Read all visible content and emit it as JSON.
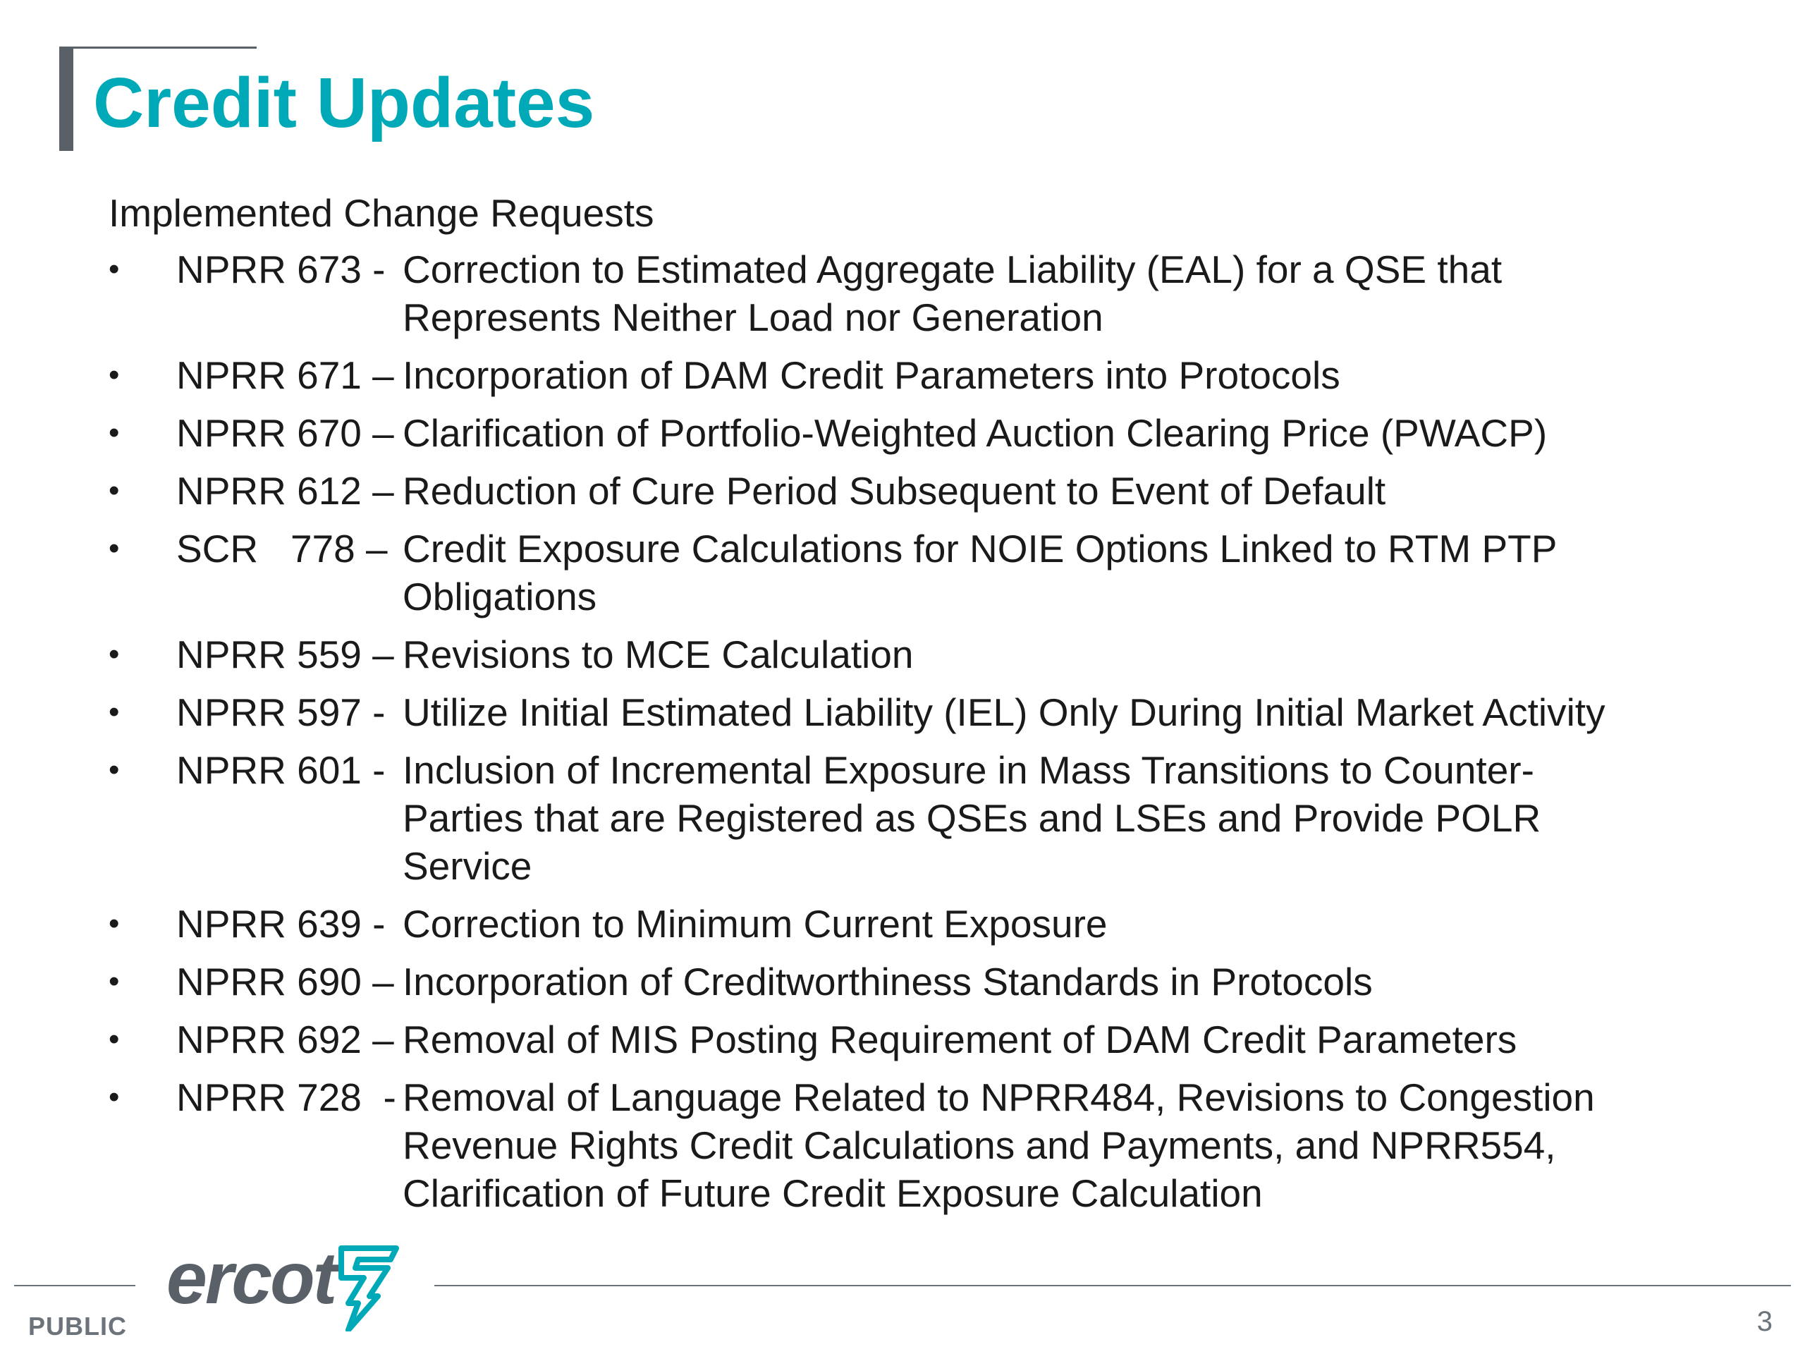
{
  "slide": {
    "title": "Credit Updates",
    "section_heading": "Implemented Change Requests",
    "bullet_glyph": "•",
    "items": [
      {
        "code": "NPRR 673 -",
        "lines": [
          "Correction to Estimated Aggregate Liability (EAL) for a QSE that",
          "Represents Neither Load nor Generation"
        ]
      },
      {
        "code": "NPRR 671 –",
        "lines": [
          "Incorporation of DAM Credit Parameters into Protocols"
        ]
      },
      {
        "code": "NPRR 670 –",
        "lines": [
          "Clarification of Portfolio-Weighted Auction Clearing Price (PWACP)"
        ]
      },
      {
        "code": "NPRR 612 –",
        "lines": [
          "Reduction of Cure Period Subsequent to Event of Default"
        ]
      },
      {
        "code": "SCR   778 –",
        "lines": [
          "Credit Exposure Calculations for NOIE Options Linked to RTM PTP",
          "Obligations"
        ]
      },
      {
        "code": "NPRR 559 –",
        "lines": [
          "Revisions to MCE Calculation"
        ]
      },
      {
        "code": "NPRR 597 -",
        "lines": [
          "Utilize Initial Estimated Liability (IEL) Only During Initial Market Activity"
        ]
      },
      {
        "code": "NPRR 601 -",
        "lines": [
          "Inclusion of Incremental Exposure in Mass Transitions to Counter-",
          "Parties that are Registered as QSEs and LSEs and Provide POLR",
          "Service"
        ]
      },
      {
        "code": "NPRR 639 -",
        "lines": [
          "Correction to Minimum Current Exposure"
        ]
      },
      {
        "code": "NPRR 690 –",
        "lines": [
          "Incorporation of Creditworthiness Standards in Protocols"
        ]
      },
      {
        "code": "NPRR 692 –",
        "lines": [
          "Removal of MIS Posting Requirement of DAM Credit Parameters"
        ]
      },
      {
        "code": "NPRR 728  -",
        "lines": [
          "Removal of Language Related to NPRR484, Revisions to Congestion",
          "Revenue Rights Credit Calculations and Payments, and NPRR554,",
          "Clarification of Future Credit Exposure Calculation"
        ]
      }
    ]
  },
  "footer": {
    "logo_text": "ercot",
    "classification": "PUBLIC",
    "page_number": "3"
  },
  "colors": {
    "title": "#00a9b7",
    "accent_gray": "#5a6068",
    "logo_mark": "#00a9b7"
  },
  "icons": {
    "logo_mark": "ercot-lightning-mark-icon"
  }
}
